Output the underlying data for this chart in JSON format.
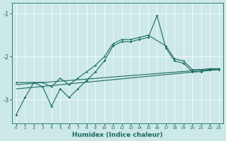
{
  "xlabel": "Humidex (Indice chaleur)",
  "bg_color": "#cce8e8",
  "line_color": "#1a6b60",
  "grid_color": "#b8d8d8",
  "xlim": [
    -0.5,
    23.5
  ],
  "ylim": [
    -3.55,
    -0.75
  ],
  "yticks": [
    -3,
    -2,
    -1
  ],
  "xticks": [
    0,
    1,
    2,
    3,
    4,
    5,
    6,
    7,
    8,
    9,
    10,
    11,
    12,
    13,
    14,
    15,
    16,
    17,
    18,
    19,
    20,
    21,
    22,
    23
  ],
  "line1_x": [
    0,
    1,
    2,
    3,
    4,
    5,
    6,
    7,
    8,
    9,
    10,
    11,
    12,
    13,
    14,
    15,
    16,
    17,
    18,
    19,
    20,
    21,
    22,
    23
  ],
  "line1_y": [
    -3.35,
    -2.95,
    -2.6,
    -2.7,
    -3.15,
    -2.75,
    -2.95,
    -2.75,
    -2.55,
    -2.35,
    -2.1,
    -1.75,
    -1.65,
    -1.65,
    -1.6,
    -1.55,
    -1.05,
    -1.8,
    -2.1,
    -2.15,
    -2.35,
    -2.35,
    -2.3,
    -2.3
  ],
  "line2_x": [
    0,
    2,
    3,
    4,
    5,
    6,
    7,
    8,
    9,
    10,
    11,
    12,
    13,
    14,
    15,
    17,
    18,
    19,
    20,
    21,
    22,
    23
  ],
  "line2_y": [
    -2.6,
    -2.6,
    -2.6,
    -2.7,
    -2.5,
    -2.65,
    -2.5,
    -2.35,
    -2.2,
    -2.0,
    -1.7,
    -1.6,
    -1.6,
    -1.55,
    -1.5,
    -1.75,
    -2.05,
    -2.1,
    -2.3,
    -2.3,
    -2.28,
    -2.28
  ],
  "line3_x": [
    0,
    23
  ],
  "line3_y": [
    -2.65,
    -2.28
  ],
  "line4_x": [
    0,
    23
  ],
  "line4_y": [
    -2.75,
    -2.3
  ]
}
